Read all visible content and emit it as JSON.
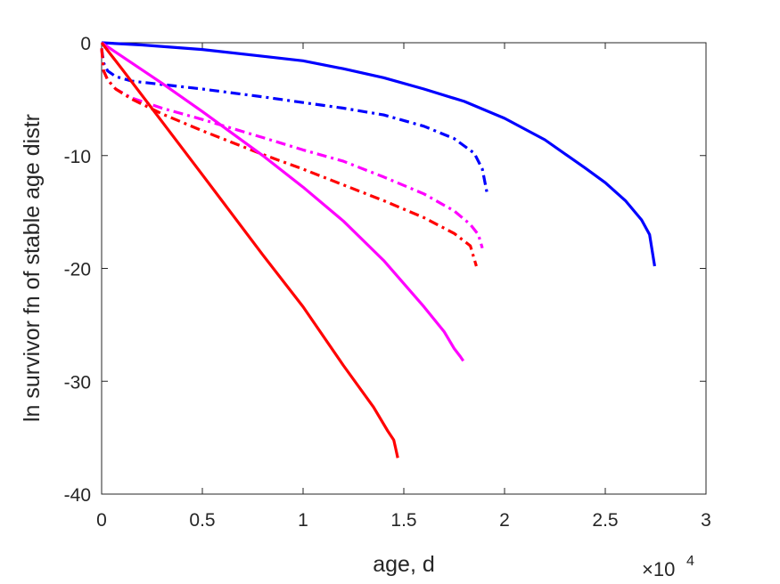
{
  "chart_data": {
    "type": "line",
    "xlabel": "age, d",
    "ylabel": "ln survivor fn of stable age distr",
    "x_exponent_label": "×10",
    "x_exponent_power": "4",
    "xlim": [
      0,
      30000
    ],
    "ylim": [
      -40,
      0
    ],
    "x_ticks": [
      0,
      5000,
      10000,
      15000,
      20000,
      25000,
      30000
    ],
    "x_tick_labels": [
      "0",
      "0.5",
      "1",
      "1.5",
      "2",
      "2.5",
      "3"
    ],
    "y_ticks": [
      0,
      -10,
      -20,
      -30,
      -40
    ],
    "y_tick_labels": [
      "0",
      "-10",
      "-20",
      "-30",
      "-40"
    ],
    "grid": false,
    "legend": "none",
    "series": [
      {
        "color": "#0000ff",
        "dash": "solid",
        "points": [
          [
            0,
            0
          ],
          [
            2000,
            -0.2
          ],
          [
            5000,
            -0.6
          ],
          [
            8000,
            -1.2
          ],
          [
            10000,
            -1.6
          ],
          [
            12000,
            -2.3
          ],
          [
            14000,
            -3.1
          ],
          [
            16000,
            -4.1
          ],
          [
            18000,
            -5.2
          ],
          [
            20000,
            -6.7
          ],
          [
            22000,
            -8.6
          ],
          [
            24000,
            -11.1
          ],
          [
            25000,
            -12.4
          ],
          [
            26000,
            -14.0
          ],
          [
            26800,
            -15.7
          ],
          [
            27200,
            -17.0
          ],
          [
            27450,
            -19.8
          ]
        ]
      },
      {
        "color": "#0000ff",
        "dash": "dashdot",
        "points": [
          [
            0,
            -0.5
          ],
          [
            100,
            -1.8
          ],
          [
            300,
            -2.5
          ],
          [
            700,
            -3.0
          ],
          [
            1500,
            -3.4
          ],
          [
            3000,
            -3.7
          ],
          [
            5000,
            -4.1
          ],
          [
            8000,
            -4.8
          ],
          [
            10000,
            -5.3
          ],
          [
            12000,
            -5.8
          ],
          [
            14000,
            -6.4
          ],
          [
            16000,
            -7.4
          ],
          [
            17500,
            -8.5
          ],
          [
            18500,
            -9.8
          ],
          [
            18900,
            -11.2
          ],
          [
            19150,
            -13.5
          ]
        ]
      },
      {
        "color": "#ff00ff",
        "dash": "dashdot",
        "points": [
          [
            0,
            -0.5
          ],
          [
            100,
            -2.5
          ],
          [
            300,
            -3.3
          ],
          [
            700,
            -4.1
          ],
          [
            1500,
            -4.9
          ],
          [
            3000,
            -5.8
          ],
          [
            5000,
            -6.8
          ],
          [
            8000,
            -8.4
          ],
          [
            10000,
            -9.5
          ],
          [
            12000,
            -10.5
          ],
          [
            14000,
            -11.9
          ],
          [
            16000,
            -13.4
          ],
          [
            17500,
            -14.9
          ],
          [
            18300,
            -16.1
          ],
          [
            18700,
            -17.0
          ],
          [
            18900,
            -18.2
          ]
        ]
      },
      {
        "color": "#ff0000",
        "dash": "dashdot",
        "points": [
          [
            0,
            -0.5
          ],
          [
            100,
            -2.5
          ],
          [
            300,
            -3.3
          ],
          [
            700,
            -4.1
          ],
          [
            1500,
            -5.0
          ],
          [
            3000,
            -6.3
          ],
          [
            5000,
            -7.8
          ],
          [
            8000,
            -9.9
          ],
          [
            10000,
            -11.2
          ],
          [
            12000,
            -12.6
          ],
          [
            14000,
            -14.0
          ],
          [
            16000,
            -15.5
          ],
          [
            17500,
            -16.9
          ],
          [
            18300,
            -18.0
          ],
          [
            18600,
            -19.8
          ]
        ]
      },
      {
        "color": "#ff00ff",
        "dash": "solid",
        "points": [
          [
            0,
            0
          ],
          [
            1000,
            -1.2
          ],
          [
            3000,
            -3.6
          ],
          [
            5000,
            -6.1
          ],
          [
            8000,
            -10.0
          ],
          [
            10000,
            -12.8
          ],
          [
            12000,
            -15.8
          ],
          [
            14000,
            -19.3
          ],
          [
            16000,
            -23.4
          ],
          [
            17000,
            -25.6
          ],
          [
            17500,
            -27.1
          ],
          [
            17800,
            -27.8
          ],
          [
            17950,
            -28.2
          ]
        ]
      },
      {
        "color": "#ff0000",
        "dash": "solid",
        "points": [
          [
            0,
            0
          ],
          [
            1000,
            -2.3
          ],
          [
            3000,
            -7.0
          ],
          [
            5000,
            -11.7
          ],
          [
            8000,
            -18.8
          ],
          [
            10000,
            -23.4
          ],
          [
            12000,
            -28.6
          ],
          [
            13500,
            -32.3
          ],
          [
            14200,
            -34.4
          ],
          [
            14500,
            -35.2
          ],
          [
            14600,
            -36.0
          ],
          [
            14700,
            -36.8
          ]
        ]
      }
    ]
  }
}
